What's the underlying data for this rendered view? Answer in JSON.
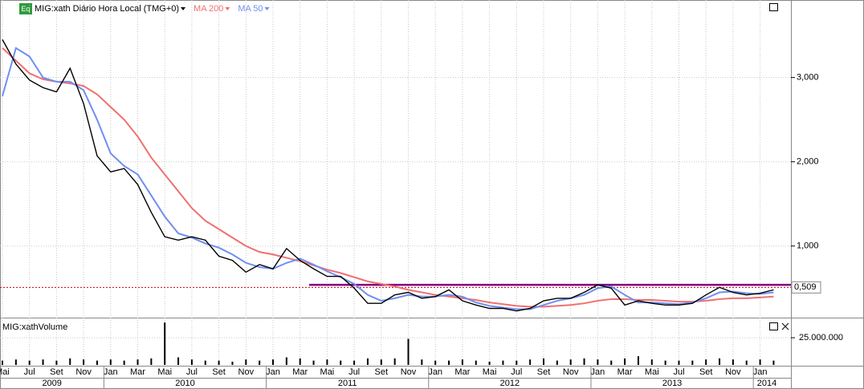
{
  "chart_data": {
    "type": "line",
    "badge": "Eq",
    "volume_title": "MIG:xathVolume",
    "x_axis": [
      {
        "year": "2009",
        "months": [
          "Mai",
          null,
          "Jul",
          null,
          "Set",
          null,
          "Nov",
          null
        ]
      },
      {
        "year": "2010",
        "months": [
          "Jan",
          null,
          "Mar",
          null,
          "Mai",
          null,
          "Jul",
          null,
          "Set",
          null,
          "Nov",
          null
        ]
      },
      {
        "year": "2011",
        "months": [
          "Jan",
          null,
          "Mar",
          null,
          "Mai",
          null,
          "Jul",
          null,
          "Set",
          null,
          "Nov",
          null
        ]
      },
      {
        "year": "2012",
        "months": [
          "Jan",
          null,
          "Mar",
          null,
          "Mai",
          null,
          "Jul",
          null,
          "Set",
          null,
          "Nov",
          null
        ]
      },
      {
        "year": "2013",
        "months": [
          "Jan",
          null,
          "Mar",
          null,
          "Mai",
          null,
          "Jul",
          null,
          "Set",
          null,
          "Nov",
          null
        ]
      },
      {
        "year": "2014",
        "months": [
          "Jan",
          null
        ]
      }
    ],
    "series": [
      {
        "name": "MIG:xath Diário Hora Local (TMG+0)",
        "color": "#000000",
        "values": [
          3.45,
          3.16,
          2.97,
          2.88,
          2.83,
          3.11,
          2.69,
          2.07,
          1.88,
          1.92,
          1.73,
          1.4,
          1.11,
          1.07,
          1.11,
          1.07,
          0.88,
          0.83,
          0.69,
          0.78,
          0.73,
          0.97,
          0.83,
          0.73,
          0.64,
          0.64,
          0.5,
          0.32,
          0.32,
          0.42,
          0.45,
          0.38,
          0.4,
          0.48,
          0.35,
          0.3,
          0.26,
          0.26,
          0.23,
          0.26,
          0.35,
          0.38,
          0.38,
          0.45,
          0.54,
          0.5,
          0.3,
          0.35,
          0.32,
          0.3,
          0.3,
          0.32,
          0.42,
          0.51,
          0.45,
          0.42,
          0.44,
          0.48
        ]
      },
      {
        "name": "MA 200",
        "color": "#f07070",
        "values": [
          3.35,
          3.2,
          3.05,
          2.98,
          2.95,
          2.93,
          2.9,
          2.8,
          2.65,
          2.5,
          2.3,
          2.05,
          1.85,
          1.65,
          1.45,
          1.3,
          1.2,
          1.1,
          1.0,
          0.93,
          0.9,
          0.86,
          0.82,
          0.77,
          0.72,
          0.68,
          0.63,
          0.58,
          0.55,
          0.52,
          0.48,
          0.45,
          0.42,
          0.4,
          0.38,
          0.36,
          0.33,
          0.31,
          0.29,
          0.28,
          0.28,
          0.29,
          0.3,
          0.32,
          0.35,
          0.37,
          0.37,
          0.36,
          0.36,
          0.35,
          0.34,
          0.34,
          0.35,
          0.37,
          0.38,
          0.38,
          0.39,
          0.4
        ]
      },
      {
        "name": "MA 50",
        "color": "#6f8fef",
        "values": [
          2.78,
          3.35,
          3.25,
          3.0,
          2.95,
          2.95,
          2.85,
          2.5,
          2.1,
          1.95,
          1.85,
          1.6,
          1.35,
          1.15,
          1.1,
          1.03,
          0.98,
          0.9,
          0.8,
          0.75,
          0.73,
          0.8,
          0.85,
          0.78,
          0.7,
          0.63,
          0.55,
          0.42,
          0.35,
          0.38,
          0.42,
          0.4,
          0.4,
          0.42,
          0.4,
          0.33,
          0.29,
          0.27,
          0.25,
          0.25,
          0.3,
          0.35,
          0.38,
          0.42,
          0.5,
          0.52,
          0.42,
          0.33,
          0.33,
          0.32,
          0.31,
          0.33,
          0.38,
          0.45,
          0.46,
          0.44,
          0.43,
          0.45
        ]
      }
    ],
    "volume": {
      "color": "#000000",
      "values": [
        4000000,
        5000000,
        4000000,
        5000000,
        4000000,
        6000000,
        5000000,
        4000000,
        5000000,
        4000000,
        5000000,
        6000000,
        39000000,
        7000000,
        5000000,
        4000000,
        4000000,
        3000000,
        5000000,
        4000000,
        5000000,
        7000000,
        6000000,
        4000000,
        5000000,
        4000000,
        4000000,
        6000000,
        5000000,
        6000000,
        24000000,
        5000000,
        4000000,
        4000000,
        5000000,
        4000000,
        3000000,
        4000000,
        4000000,
        5000000,
        6000000,
        4000000,
        5000000,
        6000000,
        5000000,
        4000000,
        6000000,
        8000000,
        5000000,
        4000000,
        4000000,
        4000000,
        5000000,
        6000000,
        5000000,
        4000000,
        5000000,
        4000000
      ],
      "ylim": [
        0,
        42000000
      ],
      "yticks": [
        {
          "value": 25000000,
          "label": "25.000.000"
        }
      ]
    },
    "last_value": {
      "value": 0.509,
      "label": "0,509",
      "color": "#cc0000"
    },
    "horizontal_line": {
      "value": 0.54,
      "color": "#800080"
    },
    "ylim": [
      0.16,
      3.92
    ],
    "yticks": [
      {
        "value": 1,
        "label": "1,000"
      },
      {
        "value": 2,
        "label": "2,000"
      },
      {
        "value": 3,
        "label": "3,000"
      }
    ],
    "grid": true
  }
}
